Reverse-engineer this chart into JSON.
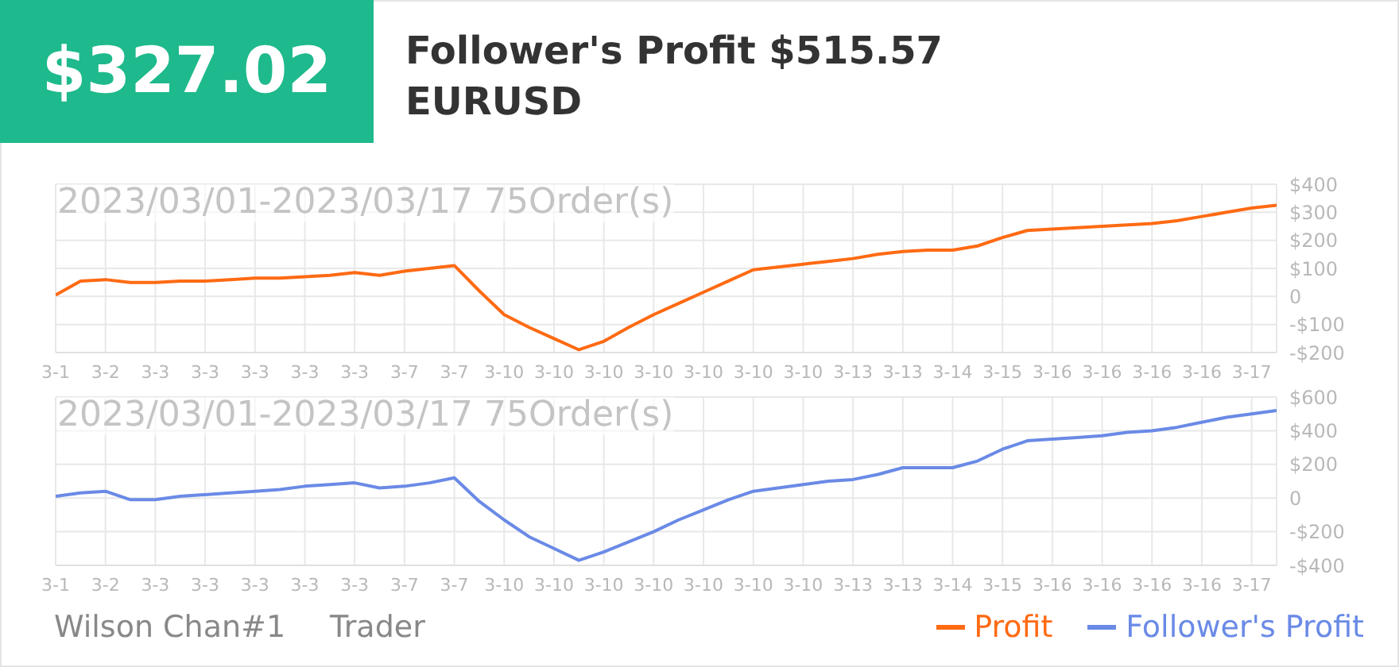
{
  "chart_data": [
    {
      "type": "line",
      "title": "2023/03/01-2023/03/17 75Order(s)",
      "annotations": [
        "$327.02",
        "Follower's Profit $515.57",
        "EURUSD",
        "Wilson Chan#1",
        "Trader"
      ],
      "categories": [
        "3-1",
        null,
        "3-2",
        null,
        "3-3",
        null,
        "3-3",
        null,
        "3-3",
        null,
        "3-3",
        null,
        "3-3",
        null,
        "3-7",
        null,
        "3-7",
        null,
        "3-10",
        null,
        "3-10",
        null,
        "3-10",
        null,
        "3-10",
        null,
        "3-10",
        null,
        "3-10",
        null,
        "3-10",
        null,
        "3-13",
        null,
        "3-13",
        null,
        "3-14",
        null,
        "3-15",
        null,
        "3-16",
        null,
        "3-16",
        null,
        "3-16",
        null,
        "3-16",
        null,
        "3-17",
        null
      ],
      "ylim": [
        -200,
        400
      ],
      "yticks": [
        {
          "value": -200,
          "label": "-$200"
        },
        {
          "value": -100,
          "label": "-$100"
        },
        0,
        {
          "value": 100,
          "label": "$100"
        },
        {
          "value": 200,
          "label": "$200"
        },
        {
          "value": 300,
          "label": "$300"
        },
        {
          "value": 400,
          "label": "$400"
        }
      ],
      "grid": true,
      "legend": "bottom right",
      "marker": "none",
      "line_style": "solid",
      "series": [
        {
          "name": "Profit",
          "color": "#ff6a13",
          "values": [
            5,
            55,
            60,
            50,
            50,
            55,
            55,
            60,
            65,
            65,
            70,
            75,
            85,
            75,
            90,
            100,
            110,
            20,
            -65,
            -110,
            -150,
            -190,
            -160,
            -110,
            -65,
            -25,
            15,
            55,
            95,
            105,
            115,
            125,
            135,
            150,
            160,
            165,
            165,
            180,
            210,
            235,
            240,
            245,
            250,
            255,
            260,
            270,
            285,
            300,
            315,
            325
          ]
        }
      ]
    },
    {
      "type": "line",
      "title": "2023/03/01-2023/03/17 75Order(s)",
      "categories": [
        "3-1",
        null,
        "3-2",
        null,
        "3-3",
        null,
        "3-3",
        null,
        "3-3",
        null,
        "3-3",
        null,
        "3-3",
        null,
        "3-7",
        null,
        "3-7",
        null,
        "3-10",
        null,
        "3-10",
        null,
        "3-10",
        null,
        "3-10",
        null,
        "3-10",
        null,
        "3-10",
        null,
        "3-10",
        null,
        "3-13",
        null,
        "3-13",
        null,
        "3-14",
        null,
        "3-15",
        null,
        "3-16",
        null,
        "3-16",
        null,
        "3-16",
        null,
        "3-16",
        null,
        "3-17",
        null
      ],
      "ylim": [
        -400,
        600
      ],
      "yticks": [
        {
          "value": -400,
          "label": "-$400"
        },
        {
          "value": -200,
          "label": "-$200"
        },
        0,
        {
          "value": 200,
          "label": "$200"
        },
        {
          "value": 400,
          "label": "$400"
        },
        {
          "value": 600,
          "label": "$600"
        }
      ],
      "grid": true,
      "legend": "bottom right",
      "marker": "none",
      "line_style": "solid",
      "series": [
        {
          "name": "Follower's Profit",
          "color": "#6a8ae6",
          "values": [
            10,
            30,
            40,
            -10,
            -10,
            10,
            20,
            30,
            40,
            50,
            70,
            80,
            90,
            60,
            70,
            90,
            120,
            -20,
            -130,
            -230,
            -300,
            -370,
            -320,
            -260,
            -200,
            -130,
            -70,
            -10,
            40,
            60,
            80,
            100,
            110,
            140,
            180,
            180,
            180,
            220,
            290,
            340,
            350,
            360,
            370,
            390,
            400,
            420,
            450,
            480,
            500,
            520
          ]
        }
      ]
    }
  ]
}
